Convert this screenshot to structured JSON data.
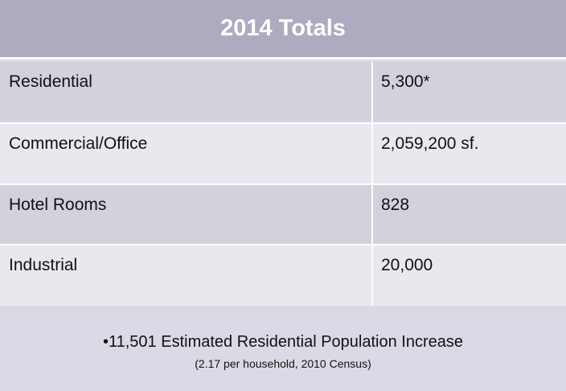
{
  "table": {
    "title": "2014 Totals",
    "rows": [
      {
        "label": "Residential",
        "value": "5,300*"
      },
      {
        "label": "Commercial/Office",
        "value": "2,059,200 sf."
      },
      {
        "label": "Hotel Rooms",
        "value": "828"
      },
      {
        "label": "Industrial",
        "value": "20,000"
      }
    ]
  },
  "footnote": {
    "main": "•11,501 Estimated Residential Population Increase",
    "sub": "(2.17 per household, 2010 Census)"
  },
  "colors": {
    "header_bg": "#aeaabf",
    "row_dark": "#d3d1dc",
    "row_light": "#e9e8ee",
    "page_bg": "#dcd9e6"
  }
}
